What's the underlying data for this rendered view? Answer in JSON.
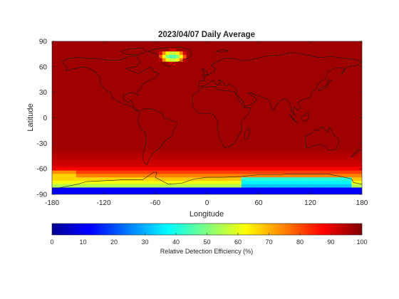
{
  "chart_data": {
    "type": "heatmap",
    "title": "2023/04/07 Daily Average",
    "xlabel": "Longitude",
    "ylabel": "Latitude",
    "xlim": [
      -180,
      180
    ],
    "ylim": [
      -90,
      90
    ],
    "xticks": [
      -180,
      -120,
      -60,
      0,
      60,
      120,
      180
    ],
    "yticks": [
      90,
      60,
      30,
      0,
      -30,
      -60,
      -90
    ],
    "colormap": "jet",
    "colorbar": {
      "label": "Relative Detection Efficiency (%)",
      "range": [
        0,
        100
      ],
      "ticks": [
        0,
        10,
        20,
        30,
        40,
        50,
        60,
        70,
        80,
        90,
        100
      ],
      "placement": "bottom"
    },
    "field_description_values": {
      "global_typical": 97,
      "southern_ocean_band_60S_70S": 85,
      "antarctic_coast_east": 20,
      "antarctic_coast_west": 45,
      "greenland_center": 45
    }
  }
}
